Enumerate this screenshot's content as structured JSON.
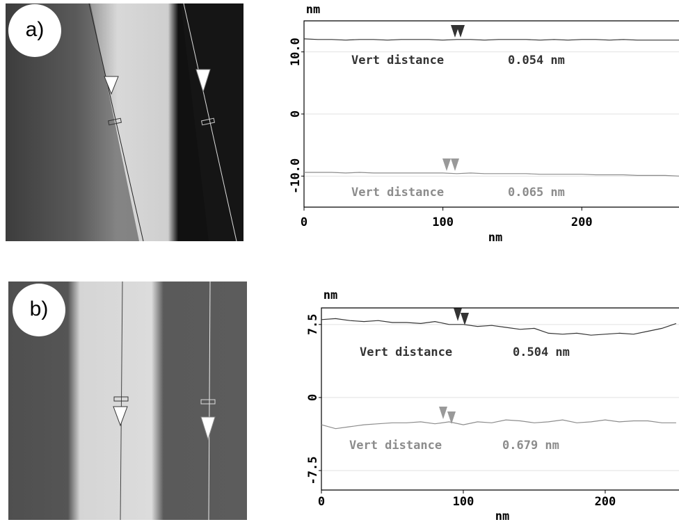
{
  "chart_data": [
    {
      "type": "line",
      "panel_label": "a)",
      "y_label": "nm",
      "x_label": "nm",
      "x": [
        0,
        10,
        20,
        30,
        40,
        50,
        60,
        70,
        80,
        90,
        100,
        110,
        120,
        130,
        140,
        150,
        160,
        170,
        180,
        190,
        200,
        210,
        220,
        230,
        240,
        250,
        260,
        270
      ],
      "series": [
        {
          "color": "#333333",
          "values": [
            12.1,
            12.0,
            12.0,
            11.9,
            12.0,
            12.0,
            11.9,
            12.0,
            12.0,
            12.0,
            11.9,
            12.0,
            12.0,
            11.9,
            12.0,
            12.0,
            12.0,
            11.9,
            12.0,
            11.9,
            12.0,
            12.0,
            11.9,
            12.0,
            11.9,
            11.9,
            11.9,
            11.9
          ]
        },
        {
          "color": "#8c8c8c",
          "values": [
            -9.4,
            -9.4,
            -9.4,
            -9.5,
            -9.4,
            -9.5,
            -9.5,
            -9.5,
            -9.5,
            -9.5,
            -9.5,
            -9.6,
            -9.5,
            -9.6,
            -9.6,
            -9.6,
            -9.6,
            -9.7,
            -9.7,
            -9.7,
            -9.7,
            -9.8,
            -9.8,
            -9.8,
            -9.9,
            -9.9,
            -9.9,
            -10.0
          ]
        }
      ],
      "annotations": [
        {
          "text": "Vert distance",
          "value_text": "0.054 nm"
        },
        {
          "text": "Vert distance",
          "value_text": "0.065 nm"
        }
      ],
      "xlim": [
        0,
        270
      ],
      "xticks": [
        0,
        100,
        200
      ],
      "ylim": [
        -15,
        15
      ],
      "yticks": [
        {
          "value": -10,
          "label": "-10.0"
        },
        0,
        {
          "value": 10,
          "label": "10.0"
        }
      ],
      "grid": true
    },
    {
      "type": "line",
      "panel_label": "b)",
      "y_label": "nm",
      "x_label": "nm",
      "x": [
        0,
        10,
        20,
        30,
        40,
        50,
        60,
        70,
        80,
        90,
        100,
        110,
        120,
        130,
        140,
        150,
        160,
        170,
        180,
        190,
        200,
        210,
        220,
        230,
        240,
        250
      ],
      "series": [
        {
          "color": "#333333",
          "values": [
            8.0,
            8.1,
            7.9,
            7.8,
            7.9,
            7.7,
            7.7,
            7.6,
            7.8,
            7.5,
            7.5,
            7.3,
            7.4,
            7.2,
            7.0,
            7.1,
            6.6,
            6.5,
            6.6,
            6.4,
            6.5,
            6.6,
            6.5,
            6.8,
            7.1,
            7.6
          ]
        },
        {
          "color": "#8c8c8c",
          "values": [
            -2.8,
            -3.2,
            -3.0,
            -2.8,
            -2.7,
            -2.6,
            -2.6,
            -2.5,
            -2.7,
            -2.5,
            -2.8,
            -2.5,
            -2.6,
            -2.3,
            -2.4,
            -2.6,
            -2.5,
            -2.3,
            -2.6,
            -2.5,
            -2.3,
            -2.5,
            -2.4,
            -2.4,
            -2.6,
            -2.6
          ]
        }
      ],
      "annotations": [
        {
          "text": "Vert distance",
          "value_text": "0.504 nm"
        },
        {
          "text": "Vert distance",
          "value_text": "0.679 nm"
        }
      ],
      "xlim": [
        0,
        252
      ],
      "xticks": [
        0,
        100,
        200
      ],
      "ylim": [
        -9.5,
        9.2
      ],
      "yticks": [
        {
          "value": -7.5,
          "label": "-7.5"
        },
        0,
        {
          "value": 7.5,
          "label": "7.5"
        }
      ],
      "grid": true
    }
  ]
}
